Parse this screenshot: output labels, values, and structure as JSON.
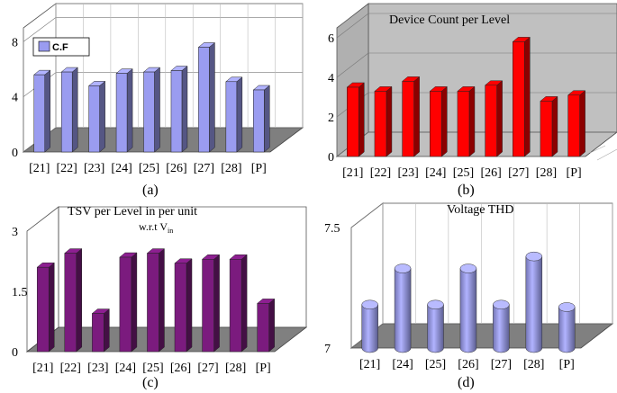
{
  "figure": {
    "captions": [
      "(a)",
      "(b)",
      "(c)",
      "(d)"
    ]
  },
  "chart_data": [
    {
      "panel": "a",
      "type": "bar",
      "title": "",
      "legend": [
        "C.F"
      ],
      "legend_position": "top-left",
      "categories": [
        "[21]",
        "[22]",
        "[23]",
        "[24]",
        "[25]",
        "[26]",
        "[27]",
        "[28]",
        "[P]"
      ],
      "series": [
        {
          "name": "C.F",
          "values": [
            5.6,
            5.8,
            4.8,
            5.7,
            5.8,
            5.9,
            7.6,
            5.1,
            4.5
          ]
        }
      ],
      "yticks": [
        "0",
        "4",
        "8"
      ],
      "ylim": [
        0,
        9
      ],
      "color": "#9a9cf0"
    },
    {
      "panel": "b",
      "type": "bar",
      "title": "Device  Count per Level",
      "categories": [
        "[21]",
        "[22]",
        "[23]",
        "[24]",
        "[25]",
        "[26]",
        "[27]",
        "[28]",
        "[P]"
      ],
      "series": [
        {
          "name": "Device Count",
          "values": [
            3.5,
            3.3,
            3.8,
            3.3,
            3.3,
            3.6,
            5.8,
            2.8,
            3.1
          ]
        }
      ],
      "yticks": [
        "0",
        "2",
        "4",
        "6"
      ],
      "ylim": [
        0,
        6.5
      ],
      "color": "#ff0000"
    },
    {
      "panel": "c",
      "type": "bar",
      "title": "TSV per Level in per unit",
      "subtitle_main": "w.r.t V",
      "subtitle_sub": "in",
      "categories": [
        "[21]",
        "[22]",
        "[23]",
        "[24]",
        "[25]",
        "[26]",
        "[27]",
        "[28]",
        "[P]"
      ],
      "series": [
        {
          "name": "TSV",
          "values": [
            2.1,
            2.45,
            0.95,
            2.35,
            2.45,
            2.2,
            2.3,
            2.3,
            1.2
          ]
        }
      ],
      "yticks": [
        "0",
        "1.5",
        "3"
      ],
      "ylim": [
        0,
        3
      ],
      "color": "#7b1b7e"
    },
    {
      "panel": "d",
      "type": "bar",
      "title": "Voltage THD",
      "categories": [
        "[21]",
        "[24]",
        "[25]",
        "[26]",
        "[27]",
        "[28]",
        "[P]"
      ],
      "series": [
        {
          "name": "Voltage THD",
          "values": [
            7.18,
            7.33,
            7.18,
            7.33,
            7.18,
            7.38,
            7.17
          ]
        }
      ],
      "yticks": [
        "7",
        "7.5"
      ],
      "ylim": [
        7,
        7.5
      ],
      "color": "#9a9cf0"
    }
  ]
}
